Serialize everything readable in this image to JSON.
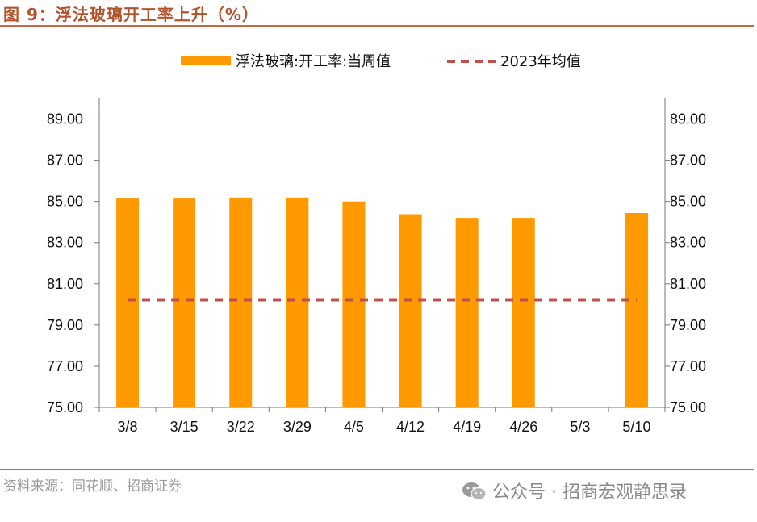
{
  "figure": {
    "title": "图 9：浮法玻璃开工率上升（%）",
    "source": "资料来源：同花顺、招商证券",
    "watermark": "公众号 · 招商宏观静思录",
    "watermark_icon": "wechat-icon"
  },
  "colors": {
    "bar": "#FF9900",
    "avg_line": "#C0504D",
    "accent_rule": "#C46A45",
    "title": "#B3532B"
  },
  "chart_data": {
    "type": "bar",
    "categories": [
      "3/8",
      "3/15",
      "3/22",
      "3/29",
      "4/5",
      "4/12",
      "4/19",
      "4/26",
      "5/3",
      "5/10"
    ],
    "series": [
      {
        "name": "浮法玻璃:开工率:当周值",
        "type": "bar",
        "values": [
          85.14,
          85.14,
          85.19,
          85.19,
          85.0,
          84.38,
          84.2,
          84.2,
          null,
          84.44
        ]
      },
      {
        "name": "2023年均值",
        "type": "line",
        "style": "dashed",
        "values": [
          80.23,
          80.23,
          80.23,
          80.23,
          80.23,
          80.23,
          80.23,
          80.23,
          80.23,
          80.23
        ]
      }
    ],
    "ylim": [
      75,
      90
    ],
    "yticks": [
      "75.00",
      "77.00",
      "79.00",
      "81.00",
      "83.00",
      "85.00",
      "87.00",
      "89.00"
    ],
    "secondary_yaxis": true,
    "legend_position": "top",
    "grid": false,
    "xlabel": "",
    "ylabel": ""
  }
}
